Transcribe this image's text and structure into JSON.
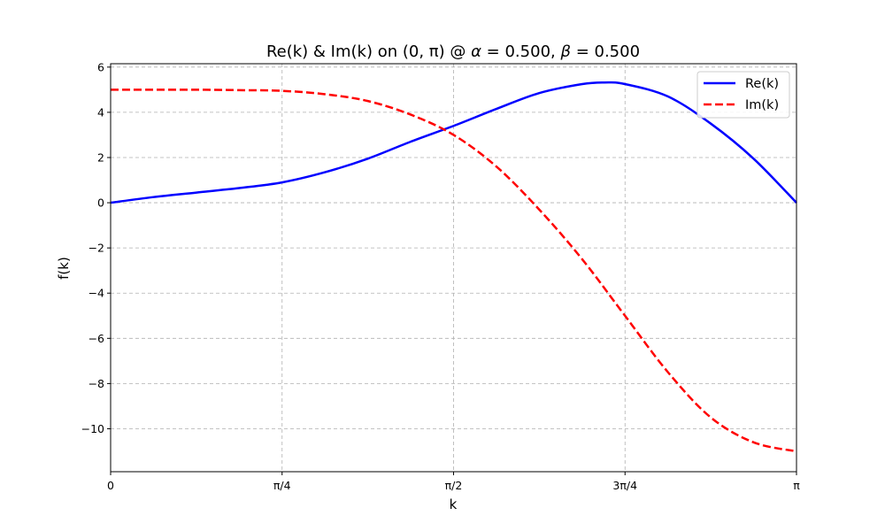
{
  "chart_data": {
    "type": "line",
    "title_prefix": "Re(k) & Im(k) on (0, π) @ ",
    "title_alpha_sym": "α",
    "title_alpha_val": "0.500",
    "title_beta_sym": "β",
    "title_beta_val": "0.500",
    "xlabel": "k",
    "ylabel": "f(k)",
    "xlim": [
      0,
      3.14159
    ],
    "ylim": [
      -11.9,
      6.15
    ],
    "grid": true,
    "legend_position": "top-right",
    "x_ticks": [
      {
        "value": 0,
        "label": "0"
      },
      {
        "value": 0.7854,
        "label": "π/4"
      },
      {
        "value": 1.5708,
        "label": "π/2"
      },
      {
        "value": 2.3562,
        "label": "3π/4"
      },
      {
        "value": 3.14159,
        "label": "π"
      }
    ],
    "y_ticks": [
      {
        "value": 6,
        "label": "6"
      },
      {
        "value": 4,
        "label": "4"
      },
      {
        "value": 2,
        "label": "2"
      },
      {
        "value": 0,
        "label": "0"
      },
      {
        "value": -2,
        "label": "−2"
      },
      {
        "value": -4,
        "label": "−4"
      },
      {
        "value": -6,
        "label": "−6"
      },
      {
        "value": -8,
        "label": "−8"
      },
      {
        "value": -10,
        "label": "−10"
      }
    ],
    "series": [
      {
        "name": "Re(k)",
        "color": "#0000ff",
        "style": "solid",
        "x": [
          0,
          0.196,
          0.393,
          0.589,
          0.785,
          0.982,
          1.178,
          1.374,
          1.571,
          1.767,
          1.963,
          2.16,
          2.262,
          2.356,
          2.553,
          2.749,
          2.945,
          3.14159
        ],
        "y": [
          0,
          0.25,
          0.45,
          0.65,
          0.9,
          1.35,
          1.95,
          2.7,
          3.4,
          4.15,
          4.85,
          5.25,
          5.32,
          5.25,
          4.7,
          3.5,
          1.95,
          0
        ]
      },
      {
        "name": "Im(k)",
        "color": "#ff0000",
        "style": "dashed",
        "x": [
          0,
          0.196,
          0.393,
          0.589,
          0.785,
          0.982,
          1.178,
          1.374,
          1.571,
          1.767,
          1.963,
          2.16,
          2.356,
          2.553,
          2.749,
          2.945,
          3.14159
        ],
        "y": [
          5,
          5,
          5,
          4.98,
          4.95,
          4.8,
          4.5,
          3.9,
          3,
          1.6,
          -0.3,
          -2.5,
          -5,
          -7.5,
          -9.5,
          -10.6,
          -11
        ]
      }
    ]
  }
}
